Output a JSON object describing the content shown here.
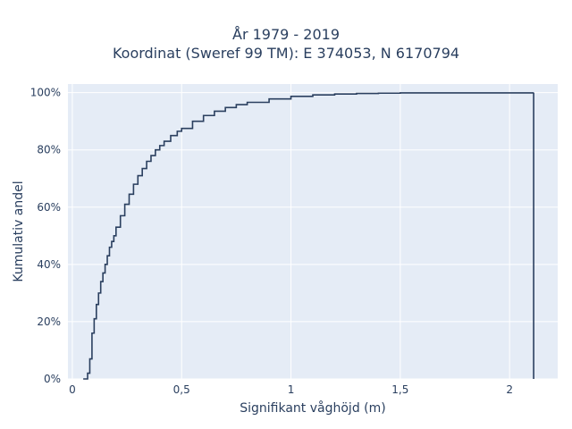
{
  "chart_data": {
    "type": "line",
    "step": true,
    "title_lines": [
      "År 1979 - 2019",
      "Koordinat (Sweref 99 TM): E 374053, N 6170794"
    ],
    "xlabel": "Signifikant våghöjd (m)",
    "ylabel": "Kumulativ andel",
    "xlim": [
      -0.02,
      2.22
    ],
    "ylim": [
      0,
      1.03
    ],
    "x_ticks": [
      0,
      0.5,
      1,
      1.5,
      2
    ],
    "x_tick_labels": [
      "0",
      "0,5",
      "1",
      "1,5",
      "2"
    ],
    "y_ticks": [
      0,
      0.2,
      0.4,
      0.6,
      0.8,
      1.0
    ],
    "y_tick_labels": [
      "0%",
      "20%",
      "40%",
      "60%",
      "80%",
      "100%"
    ],
    "grid": true,
    "legend": false,
    "series": [
      {
        "x": [
          0.05,
          0.07,
          0.08,
          0.09,
          0.1,
          0.11,
          0.12,
          0.13,
          0.14,
          0.15,
          0.16,
          0.17,
          0.18,
          0.19,
          0.2,
          0.22,
          0.24,
          0.26,
          0.28,
          0.3,
          0.32,
          0.34,
          0.36,
          0.38,
          0.4,
          0.42,
          0.45,
          0.48,
          0.5,
          0.55,
          0.6,
          0.65,
          0.7,
          0.75,
          0.8,
          0.9,
          1.0,
          1.1,
          1.2,
          1.3,
          1.4,
          1.5,
          2.11
        ],
        "y": [
          0.0,
          0.02,
          0.07,
          0.16,
          0.21,
          0.26,
          0.3,
          0.34,
          0.37,
          0.4,
          0.43,
          0.46,
          0.48,
          0.5,
          0.53,
          0.57,
          0.61,
          0.645,
          0.68,
          0.71,
          0.735,
          0.76,
          0.78,
          0.8,
          0.815,
          0.83,
          0.85,
          0.865,
          0.875,
          0.9,
          0.92,
          0.935,
          0.948,
          0.958,
          0.966,
          0.978,
          0.987,
          0.992,
          0.995,
          0.997,
          0.998,
          0.999,
          1.0
        ]
      }
    ],
    "colors": {
      "plot_bg": "#e5ecf6",
      "grid": "#ffffff",
      "line": "#2a3f5f",
      "text": "#2a3f5f"
    }
  }
}
